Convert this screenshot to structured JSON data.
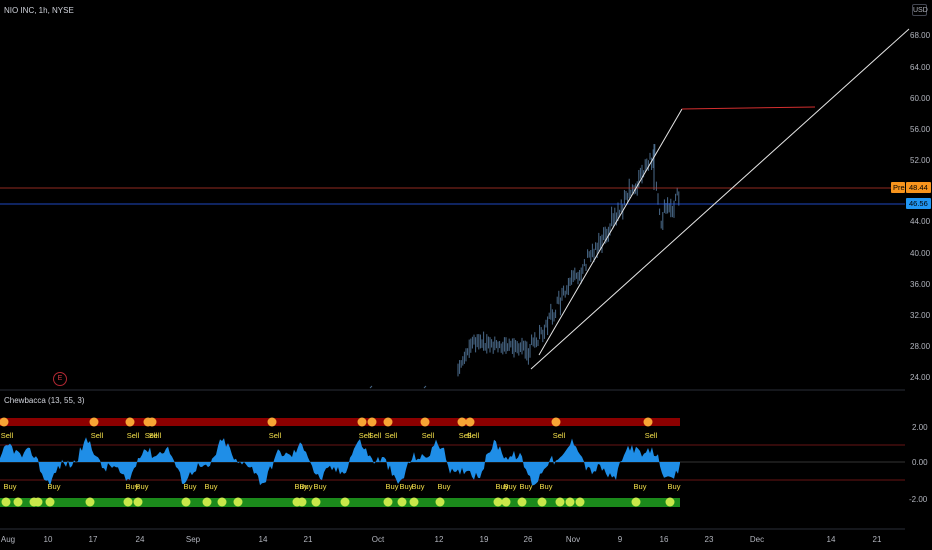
{
  "chart": {
    "title": "NIO INC, 1h, NYSE",
    "currency": "USD",
    "price_axis": [
      "68.00",
      "64.00",
      "60.00",
      "56.00",
      "52.00",
      "48.00",
      "44.00",
      "40.00",
      "36.00",
      "32.00",
      "28.00",
      "24.00"
    ],
    "pre_tag": {
      "label": "Pre",
      "value": "48.44",
      "color": "#f7941d"
    },
    "last_tag": {
      "value": "46.56",
      "color": "#2196f3"
    },
    "event_marker": "E"
  },
  "indicator": {
    "title": "Chewbacca (13, 55, 3)",
    "axis": [
      "2.00",
      "0.00",
      "-2.00"
    ],
    "sell_label": "Sell",
    "buy_label": "Buy"
  },
  "time_axis": [
    "Aug",
    "10",
    "17",
    "24",
    "Sep",
    "14",
    "21",
    "Oct",
    "12",
    "19",
    "26",
    "Nov",
    "9",
    "16",
    "23",
    "Dec",
    "14",
    "21"
  ],
  "colors": {
    "background": "#000000",
    "area": "#2196f3",
    "sell_band": "#8b0000",
    "buy_band": "#1b8a1b",
    "sell_dot": "#f7a534",
    "buy_dot": "#c8e84a"
  }
}
